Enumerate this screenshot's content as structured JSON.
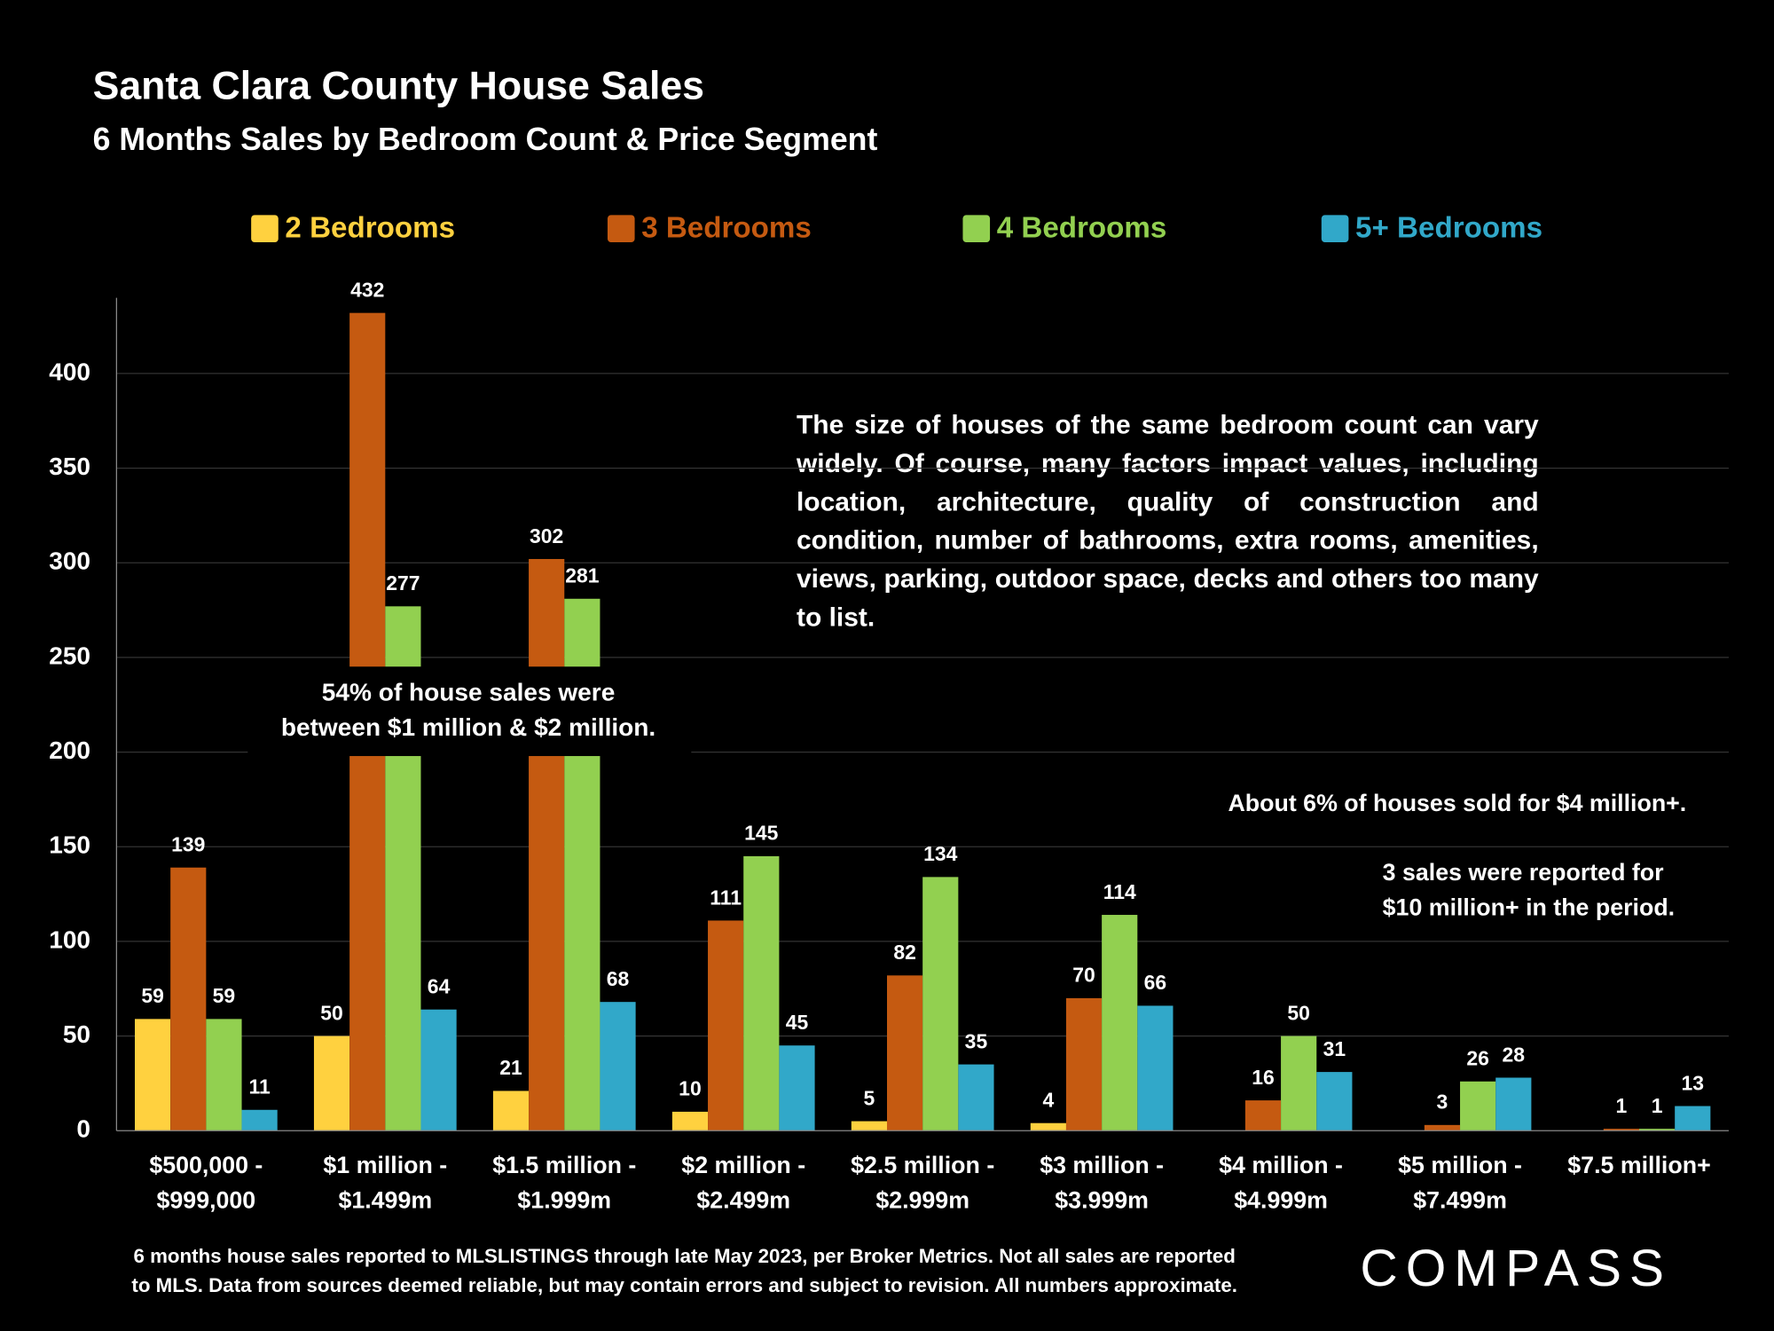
{
  "chart_data": {
    "type": "bar",
    "title": "Santa Clara County House Sales",
    "subtitle": "6 Months Sales by Bedroom Count & Price Segment",
    "categories": [
      [
        "$500,000 -",
        "$999,000"
      ],
      [
        "$1 million -",
        "$1.499m"
      ],
      [
        "$1.5 million -",
        "$1.999m"
      ],
      [
        "$2 million -",
        "$2.499m"
      ],
      [
        "$2.5 million -",
        "$2.999m"
      ],
      [
        "$3 million -",
        "$3.999m"
      ],
      [
        "$4 million -",
        "$4.999m"
      ],
      [
        "$5 million -",
        "$7.499m"
      ],
      [
        "$7.5 million+"
      ]
    ],
    "series": [
      {
        "name": "2 Bedrooms",
        "color": "#ffd13f",
        "values": [
          59,
          50,
          21,
          10,
          5,
          4,
          null,
          null,
          null
        ]
      },
      {
        "name": "3 Bedrooms",
        "color": "#c55a11",
        "values": [
          139,
          432,
          302,
          111,
          82,
          70,
          16,
          3,
          1
        ]
      },
      {
        "name": "4 Bedrooms",
        "color": "#92d050",
        "values": [
          59,
          277,
          281,
          145,
          134,
          114,
          50,
          26,
          1
        ]
      },
      {
        "name": "5+ Bedrooms",
        "color": "#31a8c9",
        "values": [
          11,
          64,
          68,
          45,
          35,
          66,
          31,
          28,
          13
        ]
      }
    ],
    "ylim": [
      0,
      440
    ],
    "yticks": [
      0,
      50,
      100,
      150,
      200,
      250,
      300,
      350,
      400
    ],
    "grid": true,
    "legend": "top",
    "annotations": {
      "paragraph": "The size of houses of the same bedroom count can vary widely. Of course, many factors impact values, including location, architecture, quality of construction and condition, number of bathrooms, extra rooms, amenities, views, parking, outdoor space, decks and others too many to list.",
      "share": [
        "54% of house sales were",
        "between $1 million & $2 million."
      ],
      "luxury": "About 6% of houses sold for $4 million+.",
      "top": [
        "3 sales were reported for",
        "$10 million+ in the period."
      ]
    },
    "footnote": [
      "6 months house sales reported to MLSLISTINGS through late May 2023, per Broker Metrics. Not all sales are reported",
      "to MLS. Data from sources deemed reliable, but may contain errors and subject to revision. All numbers approximate."
    ],
    "logo": "COMPASS"
  }
}
